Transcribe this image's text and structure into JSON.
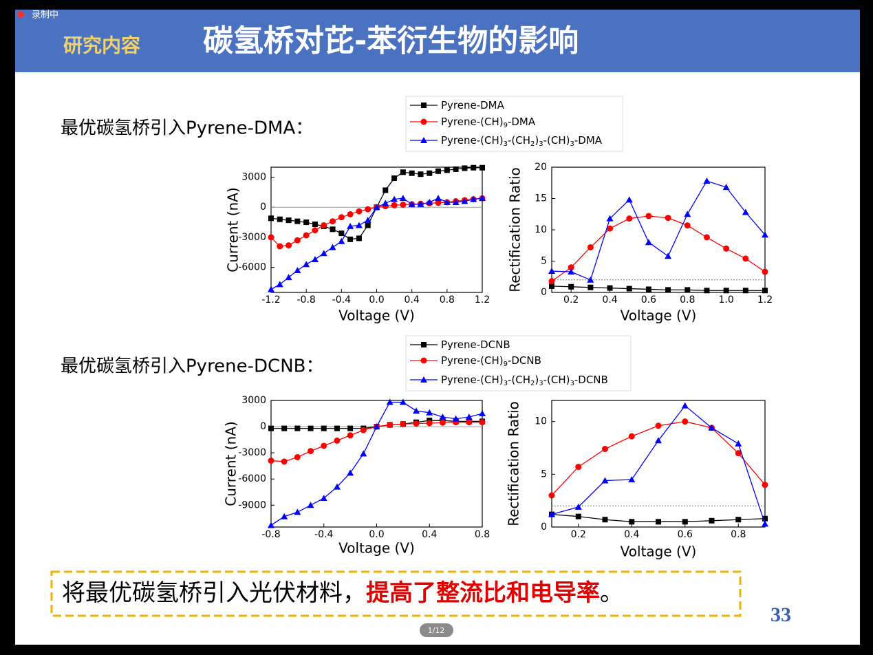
{
  "recording": "录制中",
  "header": {
    "tag": "研究内容",
    "title": "碳氢桥对芘-苯衍生物的影响"
  },
  "sections": [
    "最优碳氢桥引入Pyrene-DMA：",
    "最优碳氢桥引入Pyrene-DCNB："
  ],
  "conclusion": {
    "text": "将最优碳氢桥引入光伏材料，",
    "highlight": "提高了整流比和电导率",
    "end": "。"
  },
  "slide_number": "33",
  "page_indicator": "1/12",
  "chart_data": [
    {
      "type": "line",
      "xlabel": "Voltage (V)",
      "ylabel": "Current (nA)",
      "zero_line": true,
      "x": [
        -1.2,
        -1.1,
        -1.0,
        -0.9,
        -0.8,
        -0.7,
        -0.6,
        -0.5,
        -0.4,
        -0.3,
        -0.2,
        -0.1,
        0,
        0.1,
        0.2,
        0.3,
        0.4,
        0.5,
        0.6,
        0.7,
        0.8,
        0.9,
        1.0,
        1.1,
        1.2
      ],
      "xlim": [
        -1.2,
        1.2
      ],
      "xticks": [
        -1.2,
        -0.8,
        -0.4,
        {
          "value": 0,
          "label": "0.0"
        },
        0.4,
        0.8,
        1.2
      ],
      "ylim": [
        -8500,
        4000
      ],
      "yticks": [
        -6000,
        -3000,
        0,
        3000
      ],
      "series": [
        {
          "name": "Pyrene-DMA",
          "color": "#000000",
          "marker": "square",
          "values": [
            -1100,
            -1200,
            -1300,
            -1400,
            -1500,
            -1700,
            -1900,
            -2200,
            -2600,
            -3200,
            -3100,
            -1800,
            0,
            1700,
            2900,
            3500,
            3400,
            3300,
            3400,
            3600,
            3700,
            3800,
            3900,
            3950,
            3950
          ]
        },
        {
          "name": "Pyrene-(CH)9-DMA",
          "color": "#ff0000",
          "marker": "circle",
          "values": [
            -3000,
            -3900,
            -3800,
            -3300,
            -2800,
            -2300,
            -1800,
            -1400,
            -1000,
            -700,
            -400,
            -200,
            0,
            100,
            200,
            250,
            300,
            350,
            400,
            450,
            500,
            600,
            700,
            800,
            900
          ]
        },
        {
          "name": "Pyrene-(CH)3-(CH2)3-(CH)3-DMA",
          "color": "#0000ff",
          "marker": "triangle",
          "values": [
            -8200,
            -7700,
            -7000,
            -6300,
            -5700,
            -5200,
            -4600,
            -4000,
            -3400,
            -1900,
            -1800,
            -1300,
            0,
            400,
            800,
            900,
            300,
            300,
            500,
            900,
            500,
            500,
            600,
            800,
            900
          ]
        }
      ]
    },
    {
      "type": "line",
      "xlabel": "Voltage (V)",
      "ylabel": "Rectification Ratio",
      "hline": 2,
      "x": [
        0.1,
        0.2,
        0.3,
        0.4,
        0.5,
        0.6,
        0.7,
        0.8,
        0.9,
        1.0,
        1.1,
        1.2
      ],
      "xlim": [
        0.1,
        1.2
      ],
      "xticks": [
        0.2,
        0.4,
        0.6,
        0.8,
        {
          "value": 1,
          "label": "1.0"
        },
        1.2
      ],
      "ylim": [
        0,
        20
      ],
      "yticks": [
        0,
        5,
        10,
        15,
        20
      ],
      "series": [
        {
          "color": "#000000",
          "marker": "square",
          "values": [
            1.0,
            0.9,
            0.8,
            0.7,
            0.6,
            0.5,
            0.4,
            0.4,
            0.3,
            0.3,
            0.3,
            0.3
          ]
        },
        {
          "color": "#ff0000",
          "marker": "circle",
          "values": [
            1.8,
            4,
            7.2,
            10.2,
            11.8,
            12.2,
            11.9,
            10.7,
            8.8,
            7.0,
            5.4,
            3.3
          ]
        },
        {
          "color": "#0000ff",
          "marker": "triangle",
          "values": [
            3.4,
            3.3,
            2.0,
            11.8,
            14.8,
            8.0,
            5.8,
            12.5,
            17.8,
            16.8,
            12.8,
            9.2
          ]
        }
      ]
    },
    {
      "type": "line",
      "xlabel": "Voltage (V)",
      "ylabel": "Current (nA)",
      "zero_line": true,
      "x": [
        -0.8,
        -0.7,
        -0.6,
        -0.5,
        -0.4,
        -0.3,
        -0.2,
        -0.1,
        0,
        0.1,
        0.2,
        0.3,
        0.4,
        0.5,
        0.6,
        0.7,
        0.8
      ],
      "xlim": [
        -0.8,
        0.8
      ],
      "xticks": [
        -0.8,
        -0.4,
        {
          "value": 0,
          "label": "0.0"
        },
        0.4,
        0.8
      ],
      "ylim": [
        -11500,
        3000
      ],
      "yticks": [
        -9000,
        -6000,
        -3000,
        0,
        3000
      ],
      "series": [
        {
          "name": "Pyrene-DCNB",
          "color": "#000000",
          "marker": "square",
          "values": [
            -200,
            -200,
            -200,
            -200,
            -200,
            -200,
            -200,
            -200,
            0,
            200,
            300,
            500,
            700,
            700,
            600,
            600,
            600
          ]
        },
        {
          "name": "Pyrene-(CH)9-DCNB",
          "color": "#ff0000",
          "marker": "circle",
          "values": [
            -3900,
            -4000,
            -3500,
            -2800,
            -2200,
            -1600,
            -1000,
            -400,
            0,
            200,
            300,
            350,
            400,
            450,
            500,
            500,
            500
          ]
        },
        {
          "name": "Pyrene-(CH)3-(CH2)3-(CH)3-DCNB",
          "color": "#0000ff",
          "marker": "triangle",
          "values": [
            -11300,
            -10300,
            -9800,
            -9000,
            -8200,
            -6900,
            -5300,
            -3100,
            0,
            2800,
            2800,
            1800,
            1600,
            1100,
            900,
            1100,
            1500
          ]
        }
      ]
    },
    {
      "type": "line",
      "xlabel": "Voltage (V)",
      "ylabel": "Rectification Ratio",
      "hline": 2,
      "x": [
        0.1,
        0.2,
        0.3,
        0.4,
        0.5,
        0.6,
        0.7,
        0.8,
        0.9
      ],
      "xlim": [
        0.1,
        0.9
      ],
      "xticks": [
        0.2,
        0.4,
        0.6,
        0.8
      ],
      "ylim": [
        0,
        12
      ],
      "yticks": [
        0,
        5,
        10
      ],
      "series": [
        {
          "color": "#000000",
          "marker": "square",
          "values": [
            1.2,
            1.0,
            0.7,
            0.5,
            0.5,
            0.5,
            0.6,
            0.7,
            0.8
          ]
        },
        {
          "color": "#ff0000",
          "marker": "circle",
          "values": [
            3.0,
            5.7,
            7.4,
            8.6,
            9.6,
            10.0,
            9.4,
            7.0,
            4.0
          ]
        },
        {
          "color": "#0000ff",
          "marker": "triangle",
          "values": [
            1.2,
            1.9,
            4.4,
            4.5,
            8.2,
            11.5,
            9.4,
            7.9,
            0.3
          ]
        }
      ]
    }
  ]
}
